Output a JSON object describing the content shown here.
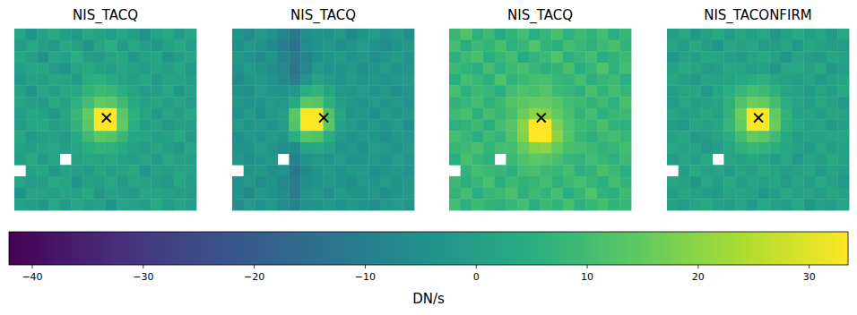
{
  "chart_data": [
    {
      "type": "heatmap",
      "title": "NIS_TACQ",
      "tick_labels": false,
      "xlim": [
        0,
        16
      ],
      "ylim": [
        16,
        0
      ],
      "marker": "x",
      "target": {
        "x": 8.1,
        "y": 7.85
      },
      "cells": [
        [
          2,
          -3,
          1,
          4,
          0,
          -2,
          3,
          1,
          -1,
          2,
          0,
          -4,
          1,
          3,
          -1,
          2
        ],
        [
          -1,
          3,
          0,
          -2,
          4,
          1,
          -3,
          2,
          5,
          -1,
          3,
          0,
          -2,
          1,
          4,
          0
        ],
        [
          3,
          0,
          -4,
          2,
          1,
          5,
          0,
          -1,
          2,
          4,
          -2,
          1,
          3,
          -3,
          0,
          2
        ],
        [
          0,
          2,
          3,
          -1,
          -3,
          2,
          4,
          1,
          0,
          3,
          1,
          -1,
          2,
          0,
          3,
          -2
        ],
        [
          -2,
          1,
          0,
          3,
          2,
          -1,
          5,
          6,
          4,
          2,
          0,
          3,
          -1,
          2,
          1,
          0
        ],
        [
          1,
          -3,
          2,
          0,
          4,
          3,
          7,
          9,
          8,
          5,
          2,
          -1,
          0,
          3,
          -2,
          1
        ],
        [
          2,
          0,
          -1,
          4,
          1,
          6,
          10,
          15,
          14,
          9,
          4,
          1,
          3,
          0,
          2,
          -1
        ],
        [
          0,
          3,
          1,
          -2,
          3,
          8,
          15,
          60,
          60,
          14,
          6,
          2,
          -1,
          2,
          0,
          3
        ],
        [
          -1,
          2,
          4,
          0,
          2,
          7,
          14,
          60,
          60,
          15,
          5,
          0,
          2,
          -2,
          1,
          0
        ],
        [
          3,
          -2,
          0,
          1,
          -1,
          4,
          9,
          14,
          13,
          8,
          3,
          2,
          0,
          1,
          4,
          -1
        ],
        [
          1,
          0,
          2,
          3,
          0,
          2,
          5,
          7,
          6,
          4,
          1,
          -1,
          3,
          0,
          -2,
          2
        ],
        [
          0,
          4,
          -1,
          2,
          null,
          1,
          3,
          2,
          4,
          1,
          0,
          2,
          -1,
          3,
          1,
          0
        ],
        [
          null,
          1,
          3,
          -2,
          1,
          0,
          -1,
          3,
          0,
          2,
          4,
          -3,
          1,
          0,
          2,
          1
        ],
        [
          2,
          -1,
          0,
          4,
          2,
          -3,
          1,
          0,
          3,
          -1,
          2,
          1,
          0,
          -2,
          3,
          0
        ],
        [
          -3,
          2,
          1,
          0,
          3,
          1,
          4,
          -2,
          1,
          0,
          -1,
          3,
          2,
          1,
          0,
          -1
        ],
        [
          1,
          0,
          -2,
          3,
          -1,
          2,
          0,
          1,
          -3,
          2,
          1,
          0,
          4,
          -1,
          2,
          0
        ]
      ]
    },
    {
      "type": "heatmap",
      "title": "NIS_TACQ",
      "tick_labels": false,
      "xlim": [
        0,
        16
      ],
      "ylim": [
        16,
        0
      ],
      "marker": "x",
      "target": {
        "x": 8.05,
        "y": 7.85
      },
      "cells": [
        [
          -3,
          -6,
          -2,
          -4,
          -8,
          -12,
          -5,
          -3,
          -4,
          -2,
          -6,
          -3,
          -1,
          -4,
          -2,
          -5
        ],
        [
          -5,
          -2,
          -4,
          -7,
          -10,
          -14,
          -6,
          -4,
          -2,
          -5,
          -3,
          -1,
          -4,
          -6,
          -3,
          -2
        ],
        [
          -2,
          -4,
          -6,
          -3,
          -9,
          -11,
          -8,
          -5,
          -3,
          -1,
          -4,
          -2,
          -5,
          -3,
          -1,
          -4
        ],
        [
          -4,
          -1,
          -3,
          -5,
          -7,
          -13,
          -7,
          -2,
          -4,
          -3,
          -2,
          -5,
          -3,
          -1,
          -4,
          -3
        ],
        [
          -6,
          -3,
          -2,
          -4,
          -6,
          -10,
          -3,
          1,
          -1,
          -4,
          -1,
          -3,
          -2,
          -4,
          -2,
          -1
        ],
        [
          -3,
          -5,
          -1,
          -3,
          -4,
          -2,
          5,
          7,
          3,
          -2,
          -3,
          -1,
          -4,
          -2,
          -5,
          -3
        ],
        [
          -2,
          -4,
          -3,
          -1,
          -2,
          4,
          14,
          13,
          6,
          0,
          -2,
          -4,
          -1,
          -3,
          -2,
          -4
        ],
        [
          -4,
          -1,
          -5,
          -2,
          0,
          14,
          60,
          60,
          12,
          2,
          -3,
          -2,
          -5,
          -1,
          -3,
          -2
        ],
        [
          -1,
          -3,
          -2,
          -4,
          -1,
          13,
          60,
          60,
          14,
          1,
          -1,
          -4,
          -2,
          -3,
          -1,
          -5
        ],
        [
          -5,
          -2,
          -4,
          -1,
          -3,
          5,
          13,
          12,
          5,
          -1,
          -4,
          -2,
          -3,
          -5,
          -2,
          -3
        ],
        [
          -3,
          -4,
          -1,
          -3,
          -5,
          -6,
          2,
          3,
          1,
          -3,
          -2,
          -5,
          -1,
          -2,
          -4,
          -1
        ],
        [
          -2,
          -5,
          -3,
          -2,
          null,
          -9,
          -4,
          -2,
          -3,
          -1,
          -4,
          -3,
          -2,
          -4,
          -1,
          -3
        ],
        [
          null,
          -3,
          -2,
          -5,
          -4,
          -12,
          -6,
          -3,
          -1,
          -4,
          -2,
          -1,
          -5,
          -3,
          -2,
          -4
        ],
        [
          -4,
          -2,
          -6,
          -3,
          -7,
          -10,
          -5,
          -4,
          -2,
          -3,
          -5,
          -2,
          -3,
          -1,
          -4,
          -2
        ],
        [
          -3,
          -6,
          -2,
          -4,
          -5,
          -11,
          -3,
          -2,
          -5,
          -1,
          -3,
          -4,
          -2,
          -5,
          -3,
          -1
        ],
        [
          -5,
          -1,
          -4,
          -2,
          -6,
          -9,
          -4,
          -3,
          -1,
          -4,
          -2,
          -3,
          -5,
          -2,
          -1,
          -3
        ]
      ]
    },
    {
      "type": "heatmap",
      "title": "NIS_TACQ",
      "tick_labels": false,
      "xlim": [
        0,
        16
      ],
      "ylim": [
        16,
        0
      ],
      "marker": "x",
      "target": {
        "x": 8.1,
        "y": 7.85
      },
      "cells": [
        [
          8,
          12,
          6,
          9,
          4,
          7,
          10,
          5,
          8,
          11,
          6,
          9,
          7,
          10,
          5,
          8
        ],
        [
          10,
          5,
          9,
          7,
          11,
          6,
          8,
          12,
          7,
          5,
          10,
          8,
          6,
          9,
          11,
          7
        ],
        [
          6,
          9,
          11,
          5,
          8,
          10,
          4,
          7,
          9,
          12,
          6,
          8,
          10,
          5,
          7,
          9
        ],
        [
          9,
          7,
          5,
          10,
          6,
          9,
          11,
          8,
          6,
          7,
          11,
          5,
          8,
          12,
          6,
          10
        ],
        [
          5,
          10,
          8,
          6,
          12,
          7,
          9,
          10,
          11,
          8,
          7,
          10,
          6,
          8,
          9,
          5
        ],
        [
          11,
          6,
          9,
          8,
          5,
          10,
          12,
          11,
          13,
          9,
          8,
          6,
          11,
          7,
          10,
          8
        ],
        [
          7,
          8,
          10,
          6,
          9,
          12,
          14,
          15,
          15,
          13,
          10,
          9,
          7,
          9,
          6,
          11
        ],
        [
          9,
          11,
          6,
          10,
          8,
          11,
          16,
          20,
          19,
          15,
          11,
          7,
          10,
          6,
          8,
          9
        ],
        [
          6,
          7,
          9,
          5,
          10,
          13,
          20,
          60,
          60,
          18,
          12,
          9,
          8,
          11,
          7,
          6
        ],
        [
          10,
          8,
          5,
          9,
          7,
          12,
          19,
          60,
          60,
          20,
          13,
          8,
          6,
          9,
          10,
          8
        ],
        [
          8,
          9,
          11,
          7,
          10,
          10,
          15,
          19,
          20,
          15,
          11,
          10,
          9,
          7,
          8,
          10
        ],
        [
          5,
          11,
          8,
          6,
          null,
          9,
          12,
          14,
          13,
          11,
          8,
          7,
          10,
          8,
          6,
          9
        ],
        [
          null,
          7,
          10,
          9,
          8,
          6,
          10,
          11,
          9,
          8,
          10,
          6,
          7,
          11,
          9,
          5
        ],
        [
          9,
          6,
          8,
          11,
          5,
          9,
          7,
          8,
          10,
          6,
          9,
          11,
          8,
          6,
          10,
          7
        ],
        [
          7,
          10,
          5,
          8,
          9,
          11,
          6,
          9,
          7,
          10,
          5,
          8,
          12,
          7,
          6,
          9
        ],
        [
          10,
          6,
          9,
          7,
          6,
          8,
          10,
          5,
          9,
          7,
          11,
          6,
          8,
          10,
          7,
          8
        ]
      ]
    },
    {
      "type": "heatmap",
      "title": "NIS_TACONFIRM",
      "tick_labels": false,
      "xlim": [
        0,
        16
      ],
      "ylim": [
        16,
        0
      ],
      "marker": "x",
      "target": {
        "x": 8.05,
        "y": 7.85
      },
      "cells": [
        [
          0,
          3,
          -2,
          1,
          4,
          -1,
          2,
          0,
          3,
          -2,
          1,
          4,
          0,
          2,
          -1,
          3
        ],
        [
          2,
          -1,
          4,
          0,
          -3,
          2,
          1,
          3,
          -1,
          0,
          2,
          -2,
          3,
          1,
          0,
          -1
        ],
        [
          -2,
          1,
          0,
          3,
          2,
          0,
          -1,
          2,
          4,
          1,
          -3,
          2,
          0,
          -1,
          3,
          1
        ],
        [
          1,
          4,
          2,
          -1,
          0,
          3,
          2,
          0,
          1,
          -2,
          2,
          3,
          1,
          4,
          -2,
          0
        ],
        [
          3,
          0,
          -1,
          2,
          1,
          2,
          4,
          5,
          6,
          3,
          1,
          0,
          2,
          -1,
          1,
          2
        ],
        [
          0,
          2,
          3,
          -2,
          3,
          5,
          8,
          10,
          9,
          6,
          2,
          1,
          -1,
          2,
          0,
          4
        ],
        [
          -1,
          3,
          0,
          1,
          2,
          6,
          12,
          16,
          15,
          10,
          5,
          2,
          0,
          3,
          1,
          -2
        ],
        [
          2,
          0,
          1,
          4,
          1,
          7,
          16,
          60,
          60,
          15,
          7,
          1,
          3,
          0,
          2,
          1
        ],
        [
          0,
          -2,
          3,
          1,
          3,
          8,
          15,
          60,
          60,
          16,
          6,
          3,
          1,
          2,
          -1,
          0
        ],
        [
          1,
          3,
          -1,
          0,
          2,
          5,
          10,
          15,
          14,
          9,
          4,
          0,
          2,
          1,
          3,
          2
        ],
        [
          3,
          1,
          2,
          -2,
          0,
          3,
          6,
          8,
          7,
          5,
          2,
          1,
          -1,
          3,
          0,
          1
        ],
        [
          -1,
          2,
          0,
          3,
          null,
          2,
          1,
          3,
          2,
          0,
          3,
          -2,
          2,
          0,
          4,
          1
        ],
        [
          null,
          0,
          4,
          1,
          2,
          -1,
          3,
          0,
          4,
          2,
          0,
          1,
          3,
          -1,
          2,
          0
        ],
        [
          2,
          1,
          -2,
          3,
          0,
          4,
          0,
          2,
          1,
          3,
          -1,
          2,
          0,
          4,
          1,
          -2
        ],
        [
          0,
          3,
          1,
          0,
          -1,
          2,
          3,
          1,
          -2,
          0,
          4,
          1,
          2,
          0,
          3,
          1
        ],
        [
          1,
          -1,
          2,
          4,
          1,
          0,
          2,
          -1,
          3,
          1,
          0,
          3,
          -2,
          1,
          0,
          2
        ]
      ]
    }
  ],
  "colorbar": {
    "label": "DN/s",
    "range": [
      -42.1,
      33.5
    ],
    "ticks": [
      {
        "value": -40,
        "label": "−40"
      },
      {
        "value": -30,
        "label": "−30"
      },
      {
        "value": -20,
        "label": "−20"
      },
      {
        "value": -10,
        "label": "−10"
      },
      0,
      10,
      20,
      30
    ]
  }
}
